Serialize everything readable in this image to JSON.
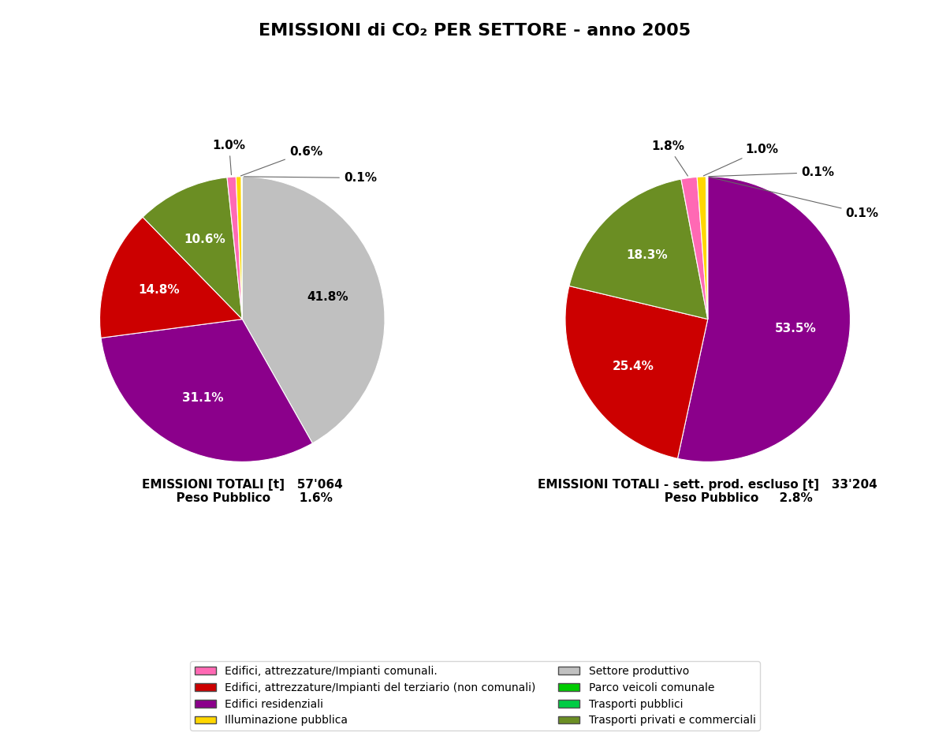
{
  "title": "EMISSIONI di CO₂ PER SETTORE - anno 2005",
  "legend": "lower center",
  "legend_entries": [
    {
      "name": "Edifici, attrezzature/Impianti comunali.",
      "color": "#ff69b4"
    },
    {
      "name": "Edifici, attrezzature/Impianti del terziario (non comunali)",
      "color": "#cc0000"
    },
    {
      "name": "Edifici residenziali",
      "color": "#8b008b"
    },
    {
      "name": "Illuminazione pubblica",
      "color": "#ffd700"
    },
    {
      "name": "Settore produttivo",
      "color": "#c0c0c0"
    },
    {
      "name": "Parco veicoli comunale",
      "color": "#00cc00"
    },
    {
      "name": "Trasporti pubblici",
      "color": "#00cc44"
    },
    {
      "name": "Trasporti privati e commerciali",
      "color": "#6b8e23"
    }
  ],
  "chart_data": [
    {
      "type": "pie",
      "title": "EMISSIONI TOTALI [t]   57'064\n      Peso Pubblico       1.6%",
      "values": [
        41.8,
        31.1,
        14.8,
        10.6,
        1.0,
        0.6,
        0.1
      ],
      "value_labels": [
        "41.8%",
        "31.1%",
        "14.8%",
        "10.6%",
        "1.0%",
        "0.6%",
        "0.1%"
      ],
      "colors": [
        "#c0c0c0",
        "#8b008b",
        "#cc0000",
        "#6b8e23",
        "#ff69b4",
        "#ffd700",
        "#00cc00"
      ]
    },
    {
      "type": "pie",
      "title": "EMISSIONI TOTALI - sett. prod. escluso [t]   33'204\n               Peso Pubblico     2.8%",
      "values": [
        53.5,
        25.4,
        18.3,
        1.8,
        1.0,
        0.1,
        0.1
      ],
      "value_labels": [
        "53.5%",
        "25.4%",
        "18.3%",
        "1.8%",
        "1.0%",
        "0.1%",
        "0.1%"
      ],
      "colors": [
        "#8b008b",
        "#cc0000",
        "#6b8e23",
        "#ff69b4",
        "#ffd700",
        "#00cc00",
        "#000080"
      ]
    }
  ]
}
